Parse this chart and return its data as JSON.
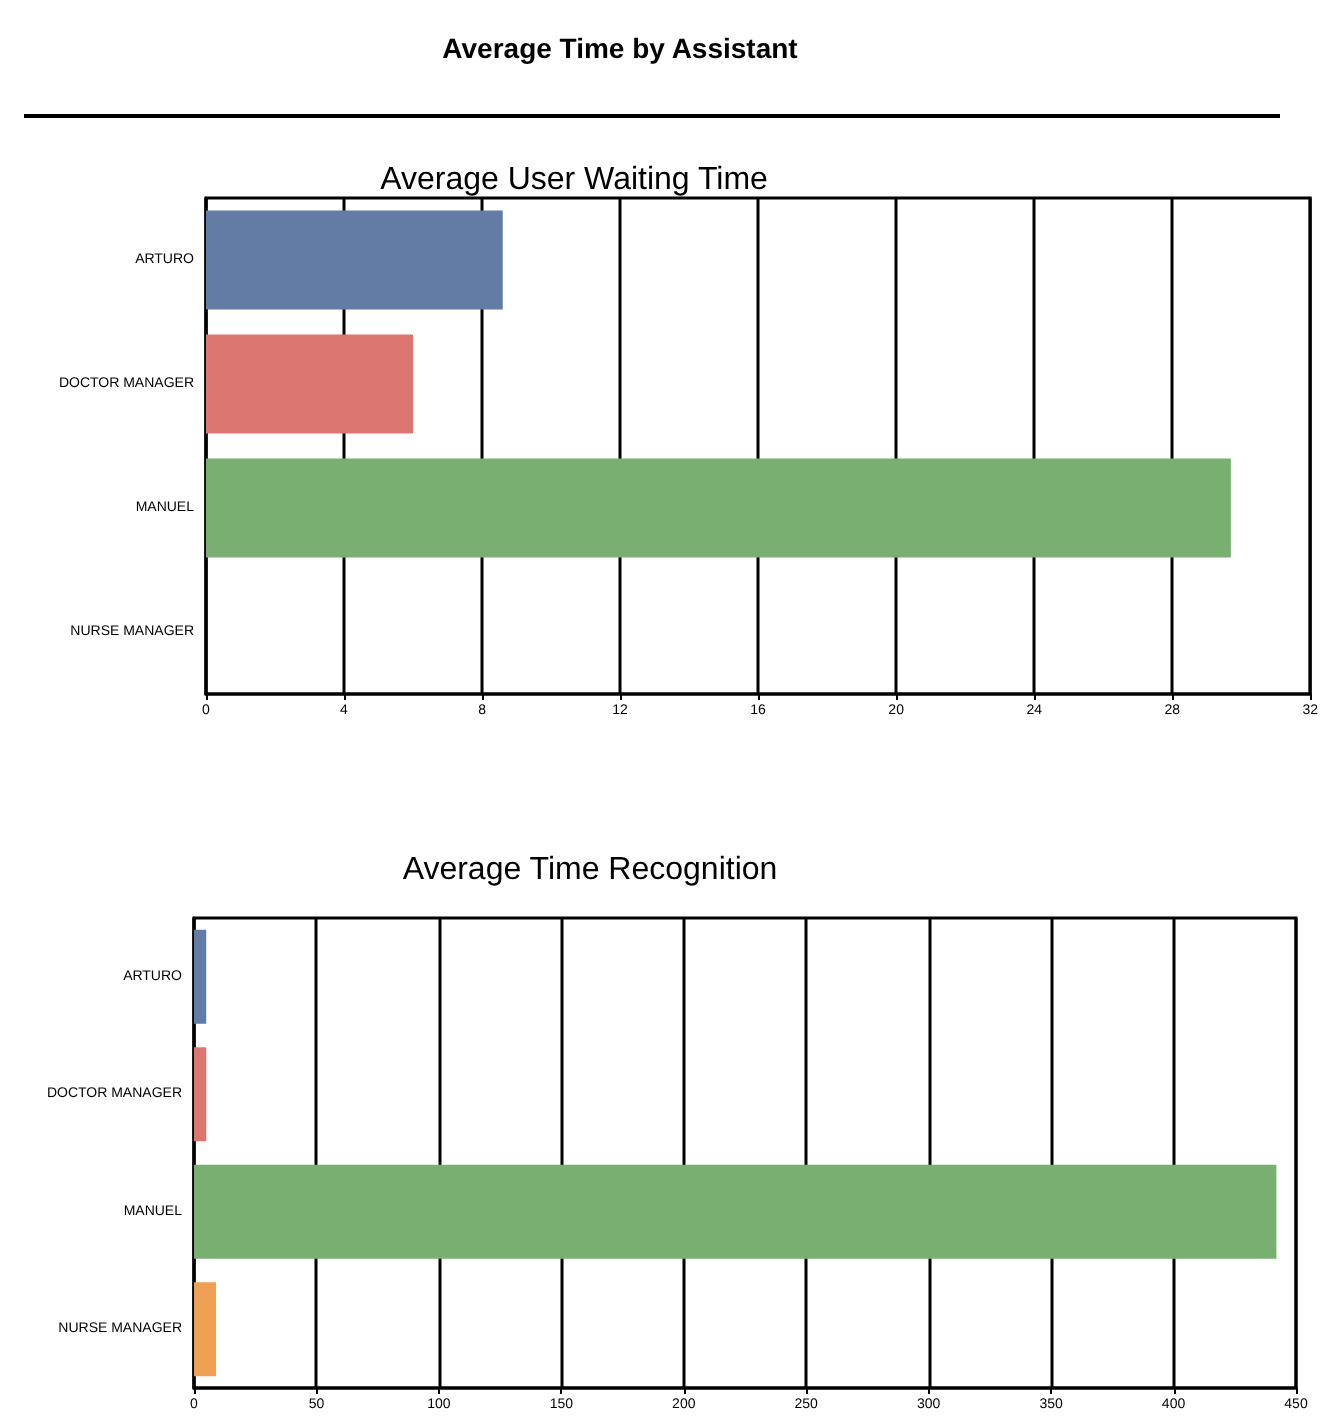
{
  "chart_data": [
    {
      "type": "bar",
      "orientation": "horizontal",
      "title": "Average Time by Assistant",
      "subtitle": "Average User Waiting Time",
      "categories": [
        "ARTURO",
        "DOCTOR MANAGER",
        "MANUEL",
        "NURSE MANAGER"
      ],
      "values": [
        8.6,
        6,
        29.7,
        null
      ],
      "colors": [
        "#637ca6",
        "#dc7670",
        "#7aaf72",
        null
      ],
      "xlim": [
        0,
        32
      ],
      "xticks": [
        0,
        4,
        8,
        12,
        16,
        20,
        24,
        28,
        32
      ],
      "grid": "x"
    },
    {
      "type": "bar",
      "orientation": "horizontal",
      "title": "Average Time Recognition",
      "categories": [
        "ARTURO",
        "DOCTOR MANAGER",
        "MANUEL",
        "NURSE MANAGER"
      ],
      "values": [
        5,
        5,
        442,
        9
      ],
      "colors": [
        "#637ca6",
        "#dc7670",
        "#7aaf72",
        "#f0a055"
      ],
      "xlim": [
        0,
        450
      ],
      "xticks": [
        0,
        50,
        100,
        150,
        200,
        250,
        300,
        350,
        400,
        450
      ],
      "grid": "x"
    }
  ]
}
